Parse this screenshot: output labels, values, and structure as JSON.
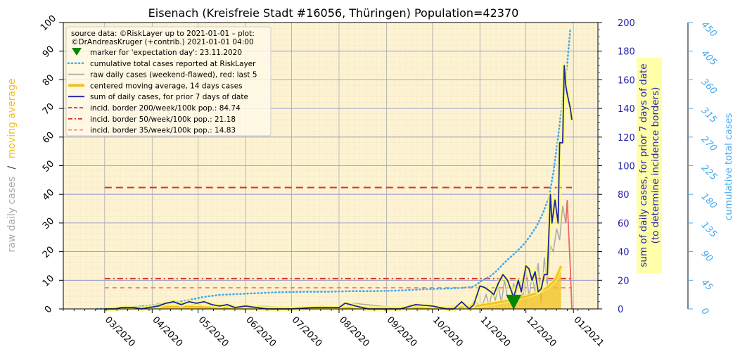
{
  "chart_data": {
    "type": "line",
    "title": "Eisenach (Kreisfreie Stadt #16056, Thüringen) Population=42370",
    "x_axis": {
      "type": "date",
      "range": [
        "2020-02-03",
        "2021-01-17"
      ],
      "ticks": [
        {
          "date": "2020-03-01",
          "label": "03/2020"
        },
        {
          "date": "2020-04-01",
          "label": "04/2020"
        },
        {
          "date": "2020-05-01",
          "label": "05/2020"
        },
        {
          "date": "2020-06-01",
          "label": "06/2020"
        },
        {
          "date": "2020-07-01",
          "label": "07/2020"
        },
        {
          "date": "2020-08-01",
          "label": "08/2020"
        },
        {
          "date": "2020-09-01",
          "label": "09/2020"
        },
        {
          "date": "2020-10-01",
          "label": "10/2020"
        },
        {
          "date": "2020-11-01",
          "label": "11/2020"
        },
        {
          "date": "2020-12-01",
          "label": "12/2020"
        },
        {
          "date": "2021-01-01",
          "label": "01/2021"
        }
      ]
    },
    "left_axis": {
      "label_parts": [
        "raw daily cases",
        "/",
        "moving average"
      ],
      "label_colors": [
        "#aaaaaa",
        "#333333",
        "#f2c01e"
      ],
      "range": [
        0,
        100
      ],
      "ticks": [
        "0",
        "10",
        "20",
        "30",
        "40",
        "50",
        "60",
        "70",
        "80",
        "90",
        "100"
      ]
    },
    "right_axis_1": {
      "label_lines": [
        "sum of daily cases, for prior 7 days of date",
        "(to determine incidence borders)"
      ],
      "color": "#2222aa",
      "range": [
        0,
        200
      ],
      "ticks": [
        "0",
        "20",
        "40",
        "60",
        "80",
        "100",
        "120",
        "140",
        "160",
        "180",
        "200"
      ]
    },
    "right_axis_2": {
      "label": "cumulative total cases",
      "color": "#44aaee",
      "range": [
        0,
        450
      ],
      "ticks": [
        "0",
        "45",
        "90",
        "135",
        "180",
        "225",
        "270",
        "315",
        "360",
        "405",
        "450"
      ]
    },
    "legend": {
      "placement": "top-left",
      "header": [
        "source data: ©RiskLayer up to 2021-01-01 – plot:",
        "©DrAndreasKruger (+contrib.) 2021-01-01 04:00"
      ],
      "entries": [
        {
          "label": "marker for 'expectation day': 23.11.2020",
          "kind": "marker",
          "color": "#008800"
        },
        {
          "label": "cumulative total cases reported at RiskLayer",
          "kind": "dotted",
          "color": "#44aaee"
        },
        {
          "label": "raw daily cases (weekend-flawed), red: last 5",
          "kind": "line",
          "color": "#aaaaaa"
        },
        {
          "label": "centered moving average, 14 days cases",
          "kind": "thick",
          "color": "#f2c01e"
        },
        {
          "label": "sum of daily cases, for prior 7 days of date",
          "kind": "line",
          "color": "#2222aa"
        },
        {
          "label": "incid. border 200/week/100k pop.: 84.74",
          "kind": "dashed",
          "color": "#dd3322"
        },
        {
          "label": "incid. border 50/week/100k pop.: 21.18",
          "kind": "dashdot",
          "color": "#dd3322"
        },
        {
          "label": "incid. border 35/week/100k pop.: 14.83",
          "kind": "dashed",
          "color": "#ee8877"
        }
      ]
    },
    "incidence_borders": [
      {
        "label": "200/week/100k",
        "value": 84.74,
        "color": "#dd3322"
      },
      {
        "label": "50/week/100k",
        "value": 21.18,
        "color": "#dd3322"
      },
      {
        "label": "35/week/100k",
        "value": 14.83,
        "color": "#ee8877"
      }
    ],
    "expectation_day": {
      "date": "2020-11-23",
      "y": 2
    },
    "series": [
      {
        "name": "cumulative total cases reported at RiskLayer",
        "axis": "right_axis_2",
        "color": "#44aaee",
        "style": "dotted",
        "x": [
          "2020-02-25",
          "2020-03-10",
          "2020-03-20",
          "2020-04-01",
          "2020-04-15",
          "2020-04-25",
          "2020-05-05",
          "2020-05-15",
          "2020-06-01",
          "2020-06-20",
          "2020-07-10",
          "2020-07-25",
          "2020-08-10",
          "2020-08-25",
          "2020-09-10",
          "2020-09-25",
          "2020-10-10",
          "2020-10-20",
          "2020-10-28",
          "2020-11-02",
          "2020-11-08",
          "2020-11-12",
          "2020-11-18",
          "2020-11-24",
          "2020-11-29",
          "2020-12-03",
          "2020-12-08",
          "2020-12-12",
          "2020-12-16",
          "2020-12-19",
          "2020-12-22",
          "2020-12-25",
          "2020-12-28",
          "2020-12-30"
        ],
        "values": [
          0,
          1,
          3,
          6,
          10,
          14,
          19,
          22,
          24,
          26,
          27,
          27,
          28,
          28,
          29,
          31,
          32,
          33,
          35,
          44,
          52,
          60,
          75,
          88,
          100,
          112,
          130,
          150,
          175,
          215,
          270,
          330,
          385,
          440
        ]
      },
      {
        "name": "raw daily cases (weekend-flawed), red: last 5",
        "axis": "left_axis",
        "color": "#aaaaaa",
        "last_color": "#ee6666",
        "style": "line",
        "x": [
          "2020-03-10",
          "2020-03-15",
          "2020-03-20",
          "2020-03-25",
          "2020-04-01",
          "2020-04-05",
          "2020-04-10",
          "2020-04-15",
          "2020-04-20",
          "2020-04-25",
          "2020-05-01",
          "2020-05-05",
          "2020-05-10",
          "2020-05-15",
          "2020-05-20",
          "2020-06-05",
          "2020-06-10",
          "2020-07-15",
          "2020-07-20",
          "2020-08-05",
          "2020-08-10",
          "2020-09-15",
          "2020-09-20",
          "2020-10-10",
          "2020-10-15",
          "2020-10-25",
          "2020-10-28",
          "2020-11-01",
          "2020-11-03",
          "2020-11-05",
          "2020-11-07",
          "2020-11-09",
          "2020-11-11",
          "2020-11-13",
          "2020-11-15",
          "2020-11-17",
          "2020-11-19",
          "2020-11-21",
          "2020-11-23",
          "2020-11-25",
          "2020-11-27",
          "2020-11-29",
          "2020-12-01",
          "2020-12-03",
          "2020-12-05",
          "2020-12-07",
          "2020-12-09",
          "2020-12-11",
          "2020-12-13",
          "2020-12-15",
          "2020-12-17",
          "2020-12-19",
          "2020-12-21",
          "2020-12-23",
          "2020-12-25",
          "2020-12-27",
          "2020-12-28",
          "2020-12-29",
          "2020-12-30",
          "2020-12-31"
        ],
        "values": [
          0,
          1,
          0,
          1,
          0,
          2,
          1,
          3,
          0,
          1,
          2,
          0,
          1,
          0,
          1,
          0,
          1,
          0,
          1,
          0,
          2,
          0,
          1,
          0,
          1,
          0,
          3,
          1,
          2,
          5,
          1,
          6,
          3,
          8,
          2,
          10,
          4,
          2,
          9,
          6,
          10,
          3,
          14,
          4,
          12,
          6,
          16,
          2,
          18,
          8,
          22,
          20,
          28,
          24,
          36,
          30,
          38,
          26,
          14,
          0
        ]
      },
      {
        "name": "centered moving average, 14 days cases",
        "axis": "left_axis",
        "color": "#f2c01e",
        "style": "thick",
        "x": [
          "2020-03-01",
          "2020-03-15",
          "2020-04-01",
          "2020-04-15",
          "2020-05-01",
          "2020-05-15",
          "2020-06-01",
          "2020-07-01",
          "2020-08-01",
          "2020-09-01",
          "2020-10-01",
          "2020-10-20",
          "2020-11-01",
          "2020-11-10",
          "2020-11-20",
          "2020-11-30",
          "2020-12-08",
          "2020-12-15",
          "2020-12-20",
          "2020-12-24"
        ],
        "values": [
          0,
          0.3,
          0.6,
          0.8,
          0.7,
          0.4,
          0.2,
          0.2,
          0.3,
          0.3,
          0.3,
          0.6,
          1.2,
          2.0,
          3.0,
          4.2,
          5.5,
          7.5,
          10,
          15
        ]
      },
      {
        "name": "sum of daily cases, for prior 7 days of date",
        "axis": "right_axis_1",
        "color": "#2222aa",
        "style": "line",
        "x": [
          "2020-03-01",
          "2020-03-08",
          "2020-03-12",
          "2020-03-20",
          "2020-03-25",
          "2020-03-30",
          "2020-04-05",
          "2020-04-10",
          "2020-04-15",
          "2020-04-20",
          "2020-04-25",
          "2020-04-30",
          "2020-05-05",
          "2020-05-10",
          "2020-05-15",
          "2020-05-20",
          "2020-05-25",
          "2020-06-01",
          "2020-06-15",
          "2020-07-01",
          "2020-07-15",
          "2020-07-25",
          "2020-08-01",
          "2020-08-05",
          "2020-08-12",
          "2020-08-20",
          "2020-09-01",
          "2020-09-10",
          "2020-09-20",
          "2020-10-01",
          "2020-10-10",
          "2020-10-15",
          "2020-10-20",
          "2020-10-25",
          "2020-10-28",
          "2020-11-01",
          "2020-11-04",
          "2020-11-08",
          "2020-11-10",
          "2020-11-13",
          "2020-11-16",
          "2020-11-19",
          "2020-11-21",
          "2020-11-23",
          "2020-11-26",
          "2020-11-28",
          "2020-12-01",
          "2020-12-03",
          "2020-12-05",
          "2020-12-07",
          "2020-12-09",
          "2020-12-11",
          "2020-12-13",
          "2020-12-15",
          "2020-12-17",
          "2020-12-18",
          "2020-12-20",
          "2020-12-22",
          "2020-12-23",
          "2020-12-25",
          "2020-12-26",
          "2020-12-27",
          "2020-12-28",
          "2020-12-30",
          "2020-12-31"
        ],
        "values": [
          0,
          0,
          1,
          1,
          0,
          1,
          2,
          4,
          5,
          3,
          5,
          4,
          5,
          3,
          2,
          3,
          1,
          2,
          0,
          0,
          1,
          1,
          1,
          4,
          2,
          0,
          0,
          0,
          3,
          2,
          0,
          0,
          5,
          0,
          3,
          16,
          15,
          12,
          10,
          18,
          24,
          20,
          14,
          8,
          20,
          12,
          30,
          28,
          20,
          26,
          12,
          14,
          24,
          24,
          80,
          60,
          76,
          60,
          116,
          116,
          170,
          156,
          150,
          140,
          132
        ]
      }
    ]
  }
}
